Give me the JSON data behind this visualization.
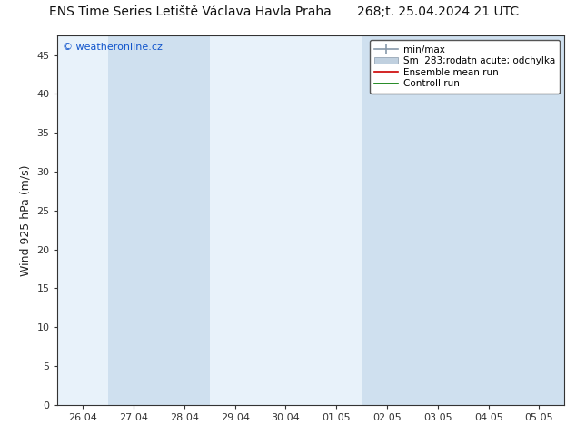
{
  "title_left": "ENS Time Series Letiště Václava Havla Praha",
  "title_right": "268;t. 25.04.2024 21 UTC",
  "ylabel": "Wind 925 hPa (m/s)",
  "watermark": "© weatheronline.cz",
  "ylim": [
    0,
    47.5
  ],
  "yticks": [
    0,
    5,
    10,
    15,
    20,
    25,
    30,
    35,
    40,
    45
  ],
  "xtick_labels": [
    "26.04",
    "27.04",
    "28.04",
    "29.04",
    "30.04",
    "01.05",
    "02.05",
    "03.05",
    "04.05",
    "05.05"
  ],
  "bg_color": "#ffffff",
  "plot_bg_color": "#e8f2fa",
  "stripe_color": "#cfe0ef",
  "stripe_positions": [
    1,
    2,
    6,
    7,
    8,
    9
  ],
  "legend_items": [
    {
      "label": "min/max",
      "color": "#8899aa"
    },
    {
      "label": "Sm  283;rodatn acute; odchylka",
      "color": "#c0d0df"
    },
    {
      "label": "Ensemble mean run",
      "color": "#cc0000"
    },
    {
      "label": "Controll run",
      "color": "#007700"
    }
  ],
  "title_fontsize": 10,
  "tick_fontsize": 8,
  "ylabel_fontsize": 9
}
